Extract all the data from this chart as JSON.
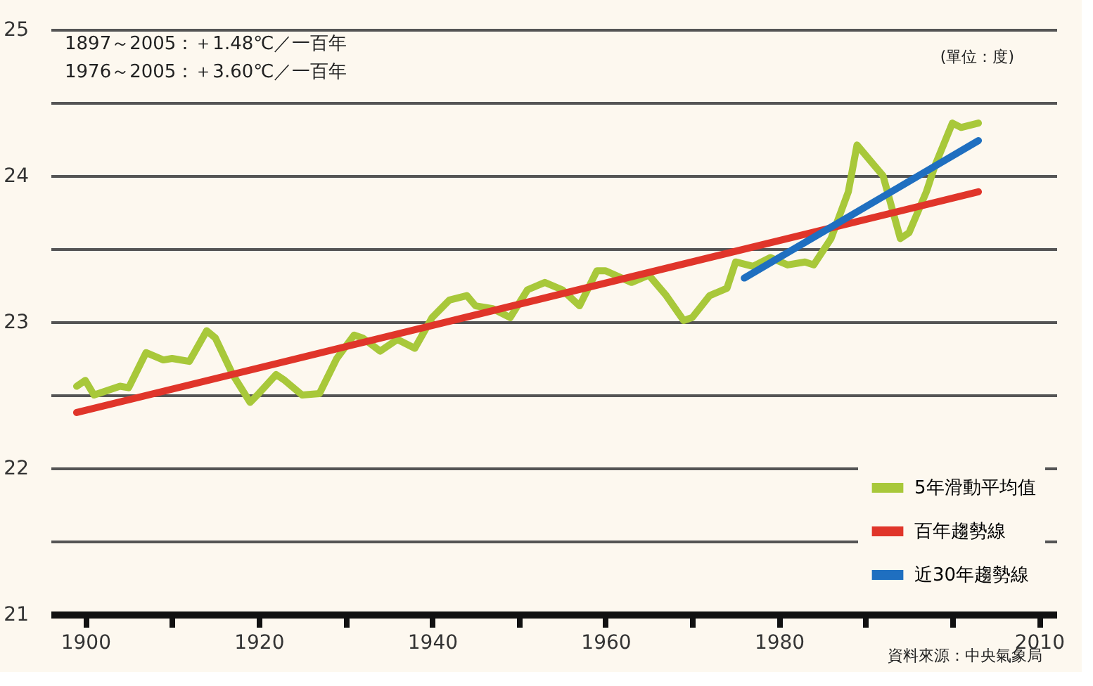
{
  "chart_data": {
    "type": "line",
    "x": [
      1899,
      1900,
      1901,
      1904,
      1905,
      1907,
      1909,
      1910,
      1912,
      1914,
      1915,
      1917,
      1919,
      1920,
      1922,
      1923,
      1925,
      1927,
      1929,
      1931,
      1932,
      1934,
      1936,
      1938,
      1940,
      1942,
      1944,
      1945,
      1947,
      1949,
      1951,
      1953,
      1955,
      1957,
      1959,
      1960,
      1963,
      1965,
      1967,
      1969,
      1970,
      1972,
      1974,
      1975,
      1977,
      1979,
      1981,
      1983,
      1984,
      1986,
      1988,
      1989,
      1991,
      1992,
      1994,
      1995,
      1997,
      1998,
      2000,
      2001,
      2003
    ],
    "series": [
      {
        "name": "5年滑動平均值",
        "color": "#a8c83a",
        "values": [
          22.56,
          22.6,
          22.5,
          22.56,
          22.55,
          22.79,
          22.74,
          22.75,
          22.73,
          22.94,
          22.89,
          22.64,
          22.45,
          22.51,
          22.64,
          22.6,
          22.5,
          22.51,
          22.75,
          22.91,
          22.89,
          22.8,
          22.88,
          22.82,
          23.03,
          23.15,
          23.18,
          23.11,
          23.09,
          23.03,
          23.22,
          23.27,
          23.22,
          23.11,
          23.35,
          23.35,
          23.27,
          23.32,
          23.18,
          23.01,
          23.03,
          23.18,
          23.23,
          23.41,
          23.38,
          23.44,
          23.39,
          23.41,
          23.39,
          23.57,
          23.89,
          24.21,
          24.07,
          24.0,
          23.57,
          23.61,
          23.89,
          24.07,
          24.36,
          24.33,
          24.36
        ]
      },
      {
        "name": "百年趨勢線",
        "color": "#e0352a",
        "x": [
          1899,
          2003
        ],
        "values": [
          22.38,
          23.89
        ]
      },
      {
        "name": "近30年趨勢線",
        "color": "#1f6fc0",
        "x": [
          1976,
          2003
        ],
        "values": [
          23.3,
          24.24
        ]
      }
    ],
    "xlim": [
      1896,
      2012
    ],
    "xticks": [
      1900,
      {
        "value": 1910,
        "label": null
      },
      1920,
      {
        "value": 1930,
        "label": null
      },
      1940,
      {
        "value": 1950,
        "label": null
      },
      1960,
      {
        "value": 1970,
        "label": null
      },
      1980,
      {
        "value": 1990,
        "label": null
      },
      {
        "value": 2000,
        "label": null
      },
      2010
    ],
    "ylim": [
      21,
      25
    ],
    "yticks": [
      21,
      {
        "value": 21.5,
        "label": null
      },
      22,
      {
        "value": 22.5,
        "label": null
      },
      23,
      {
        "value": 23.5,
        "label": null
      },
      24,
      {
        "value": 24.5,
        "label": null
      },
      25
    ],
    "grid": "y",
    "legend": "bottom right",
    "marker": "none",
    "line_style": "solid",
    "annotations": [
      "1897～2005：＋1.48℃／一百年",
      "1976～2005：＋3.60℃／一百年",
      "(單位：度)",
      "資料來源：中央氣象局"
    ]
  }
}
